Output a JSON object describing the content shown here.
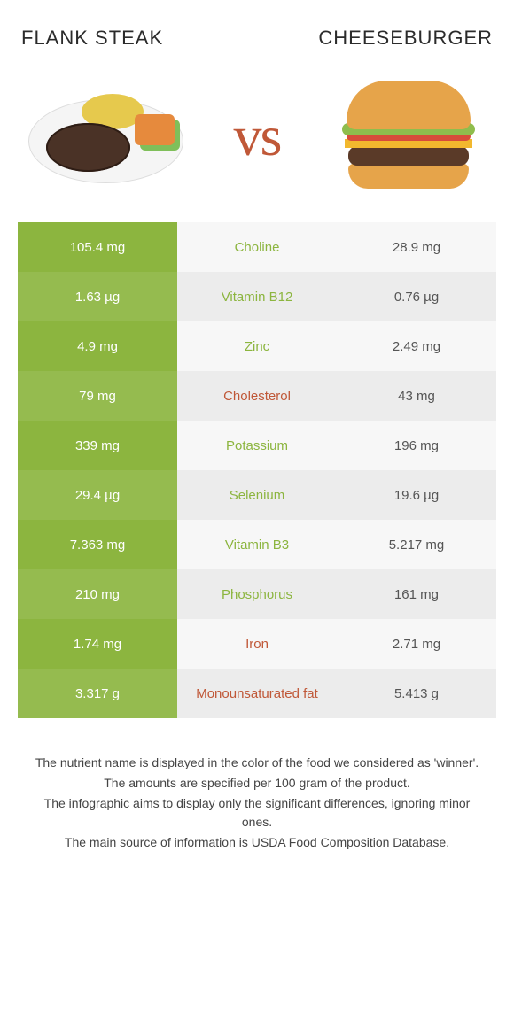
{
  "header": {
    "left_title": "Flank Steak",
    "right_title": "Cheeseburger",
    "vs_label": "vs"
  },
  "colors": {
    "left_food": "#8cb53f",
    "right_food": "#c05838",
    "row_left_bg_a": "#8cb53f",
    "row_left_bg_b": "#95bb4f",
    "row_mid_bg_a": "#f7f7f7",
    "row_mid_bg_b": "#ececec",
    "row_right_bg_a": "#f7f7f7",
    "row_right_bg_b": "#ececec",
    "right_text": "#555555"
  },
  "rows": [
    {
      "left": "105.4 mg",
      "label": "Choline",
      "right": "28.9 mg",
      "winner": "left"
    },
    {
      "left": "1.63 µg",
      "label": "Vitamin B12",
      "right": "0.76 µg",
      "winner": "left"
    },
    {
      "left": "4.9 mg",
      "label": "Zinc",
      "right": "2.49 mg",
      "winner": "left"
    },
    {
      "left": "79 mg",
      "label": "Cholesterol",
      "right": "43 mg",
      "winner": "right"
    },
    {
      "left": "339 mg",
      "label": "Potassium",
      "right": "196 mg",
      "winner": "left"
    },
    {
      "left": "29.4 µg",
      "label": "Selenium",
      "right": "19.6 µg",
      "winner": "left"
    },
    {
      "left": "7.363 mg",
      "label": "Vitamin B3",
      "right": "5.217 mg",
      "winner": "left"
    },
    {
      "left": "210 mg",
      "label": "Phosphorus",
      "right": "161 mg",
      "winner": "left"
    },
    {
      "left": "1.74 mg",
      "label": "Iron",
      "right": "2.71 mg",
      "winner": "right"
    },
    {
      "left": "3.317 g",
      "label": "Monounsaturated fat",
      "right": "5.413 g",
      "winner": "right"
    }
  ],
  "footnotes": [
    "The nutrient name is displayed in the color of the food we considered as 'winner'.",
    "The amounts are specified per 100 gram of the product.",
    "The infographic aims to display only the significant differences, ignoring minor ones.",
    "The main source of information is USDA Food Composition Database."
  ]
}
